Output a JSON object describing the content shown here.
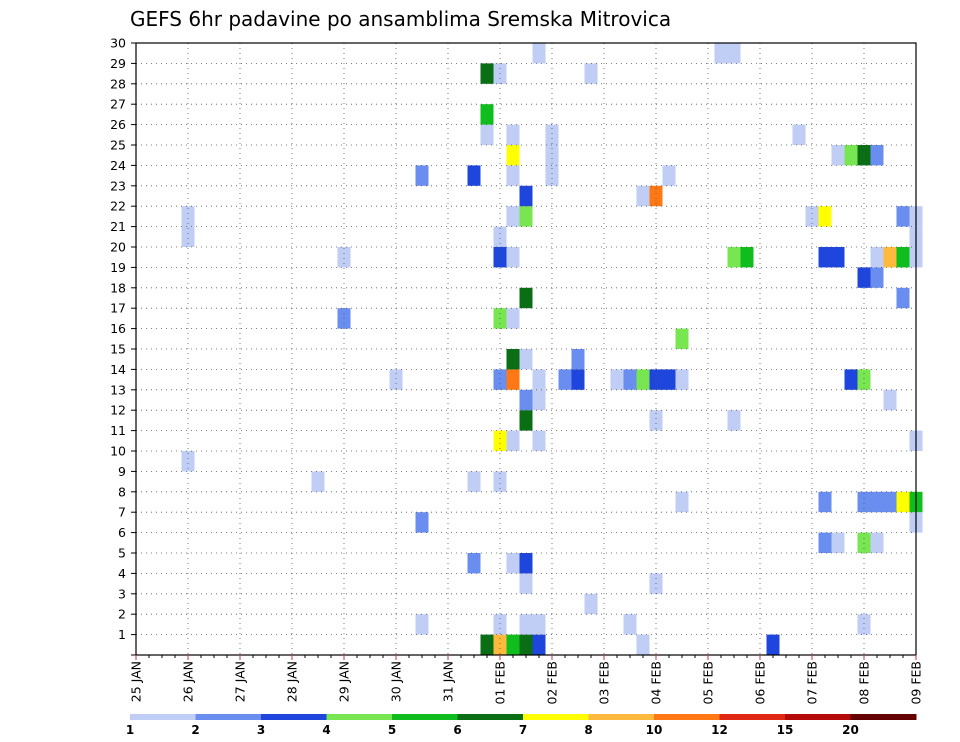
{
  "chart_data": {
    "type": "heatmap",
    "title": "GEFS 6hr padavine po ansamblima Sremska Mitrovica",
    "x_ticks": [
      "25 JAN",
      "26 JAN",
      "27 JAN",
      "28 JAN",
      "29 JAN",
      "30 JAN",
      "31 JAN",
      "01 FEB",
      "02 FEB",
      "03 FEB",
      "04 FEB",
      "05 FEB",
      "06 FEB",
      "07 FEB",
      "08 FEB",
      "09 FEB"
    ],
    "x_range": [
      "25 JAN 00z",
      "09 FEB 00z"
    ],
    "time_step_hours": 6,
    "y_ticks": [
      "1",
      "2",
      "3",
      "4",
      "5",
      "6",
      "7",
      "8",
      "9",
      "10",
      "11",
      "12",
      "13",
      "14",
      "15",
      "16",
      "17",
      "18",
      "19",
      "20",
      "21",
      "22",
      "23",
      "24",
      "25",
      "26",
      "27",
      "28",
      "29",
      "30"
    ],
    "y_range": [
      0,
      30
    ],
    "grid": "dotted",
    "colorbar": {
      "labels": [
        "1",
        "2",
        "3",
        "4",
        "5",
        "6",
        "7",
        "8",
        "10",
        "12",
        "15",
        "20"
      ],
      "colors": [
        "#c0cdf5",
        "#6a8ef0",
        "#1e46dc",
        "#78e650",
        "#0fbe1e",
        "#0a6e14",
        "#ffff00",
        "#ffb93c",
        "#ff7814",
        "#e12814",
        "#b40a0a",
        "#640000"
      ]
    },
    "points": [
      {
        "member": 0,
        "time": "31 JAN 18z",
        "class": 5
      },
      {
        "member": 0,
        "time": "01 FEB 00z",
        "class": 7
      },
      {
        "member": 0,
        "time": "01 FEB 06z",
        "class": 4
      },
      {
        "member": 0,
        "time": "01 FEB 12z",
        "class": 5
      },
      {
        "member": 0,
        "time": "01 FEB 18z",
        "class": 2
      },
      {
        "member": 0,
        "time": "03 FEB 18z",
        "class": 0
      },
      {
        "member": 0,
        "time": "06 FEB 06z",
        "class": 2
      },
      {
        "member": 1,
        "time": "30 JAN 12z",
        "class": 0
      },
      {
        "member": 1,
        "time": "01 FEB 00z",
        "class": 0
      },
      {
        "member": 1,
        "time": "01 FEB 12z",
        "class": 0
      },
      {
        "member": 1,
        "time": "01 FEB 18z",
        "class": 0
      },
      {
        "member": 1,
        "time": "03 FEB 12z",
        "class": 0
      },
      {
        "member": 1,
        "time": "08 FEB 00z",
        "class": 0
      },
      {
        "member": 2,
        "time": "02 FEB 18z",
        "class": 0
      },
      {
        "member": 3,
        "time": "01 FEB 12z",
        "class": 0
      },
      {
        "member": 3,
        "time": "04 FEB 00z",
        "class": 0
      },
      {
        "member": 4,
        "time": "31 JAN 12z",
        "class": 1
      },
      {
        "member": 4,
        "time": "01 FEB 06z",
        "class": 0
      },
      {
        "member": 4,
        "time": "01 FEB 12z",
        "class": 2
      },
      {
        "member": 5,
        "time": "07 FEB 06z",
        "class": 1
      },
      {
        "member": 5,
        "time": "07 FEB 12z",
        "class": 0
      },
      {
        "member": 5,
        "time": "08 FEB 00z",
        "class": 3
      },
      {
        "member": 5,
        "time": "08 FEB 06z",
        "class": 0
      },
      {
        "member": 6,
        "time": "30 JAN 12z",
        "class": 1
      },
      {
        "member": 6,
        "time": "09 FEB 00z",
        "class": 0
      },
      {
        "member": 7,
        "time": "04 FEB 12z",
        "class": 0
      },
      {
        "member": 7,
        "time": "07 FEB 06z",
        "class": 1
      },
      {
        "member": 7,
        "time": "08 FEB 00z",
        "class": 1
      },
      {
        "member": 7,
        "time": "08 FEB 06z",
        "class": 1
      },
      {
        "member": 7,
        "time": "08 FEB 12z",
        "class": 1
      },
      {
        "member": 7,
        "time": "08 FEB 18z",
        "class": 6
      },
      {
        "member": 7,
        "time": "09 FEB 00z",
        "class": 4
      },
      {
        "member": 8,
        "time": "28 JAN 12z",
        "class": 0
      },
      {
        "member": 8,
        "time": "31 JAN 12z",
        "class": 0
      },
      {
        "member": 8,
        "time": "01 FEB 00z",
        "class": 0
      },
      {
        "member": 9,
        "time": "26 JAN 00z",
        "class": 0
      },
      {
        "member": 10,
        "time": "01 FEB 00z",
        "class": 6
      },
      {
        "member": 10,
        "time": "01 FEB 06z",
        "class": 0
      },
      {
        "member": 10,
        "time": "01 FEB 18z",
        "class": 0
      },
      {
        "member": 10,
        "time": "09 FEB 00z",
        "class": 0
      },
      {
        "member": 11,
        "time": "01 FEB 12z",
        "class": 5
      },
      {
        "member": 11,
        "time": "04 FEB 00z",
        "class": 0
      },
      {
        "member": 11,
        "time": "05 FEB 12z",
        "class": 0
      },
      {
        "member": 12,
        "time": "01 FEB 12z",
        "class": 1
      },
      {
        "member": 12,
        "time": "01 FEB 18z",
        "class": 0
      },
      {
        "member": 12,
        "time": "08 FEB 12z",
        "class": 0
      },
      {
        "member": 13,
        "time": "30 JAN 00z",
        "class": 0
      },
      {
        "member": 13,
        "time": "01 FEB 00z",
        "class": 1
      },
      {
        "member": 13,
        "time": "01 FEB 06z",
        "class": 8
      },
      {
        "member": 13,
        "time": "01 FEB 18z",
        "class": 0
      },
      {
        "member": 13,
        "time": "02 FEB 06z",
        "class": 1
      },
      {
        "member": 13,
        "time": "02 FEB 12z",
        "class": 2
      },
      {
        "member": 13,
        "time": "03 FEB 06z",
        "class": 0
      },
      {
        "member": 13,
        "time": "03 FEB 12z",
        "class": 1
      },
      {
        "member": 13,
        "time": "03 FEB 18z",
        "class": 3
      },
      {
        "member": 13,
        "time": "04 FEB 00z",
        "class": 2
      },
      {
        "member": 13,
        "time": "04 FEB 06z",
        "class": 2
      },
      {
        "member": 13,
        "time": "04 FEB 12z",
        "class": 0
      },
      {
        "member": 13,
        "time": "07 FEB 18z",
        "class": 2
      },
      {
        "member": 13,
        "time": "08 FEB 00z",
        "class": 3
      },
      {
        "member": 14,
        "time": "01 FEB 06z",
        "class": 5
      },
      {
        "member": 14,
        "time": "01 FEB 12z",
        "class": 0
      },
      {
        "member": 14,
        "time": "02 FEB 12z",
        "class": 1
      },
      {
        "member": 15,
        "time": "04 FEB 12z",
        "class": 3
      },
      {
        "member": 16,
        "time": "29 JAN 00z",
        "class": 1
      },
      {
        "member": 16,
        "time": "01 FEB 00z",
        "class": 3
      },
      {
        "member": 16,
        "time": "01 FEB 06z",
        "class": 0
      },
      {
        "member": 17,
        "time": "01 FEB 12z",
        "class": 5
      },
      {
        "member": 17,
        "time": "08 FEB 18z",
        "class": 1
      },
      {
        "member": 18,
        "time": "08 FEB 00z",
        "class": 2
      },
      {
        "member": 18,
        "time": "08 FEB 06z",
        "class": 1
      },
      {
        "member": 19,
        "time": "29 JAN 00z",
        "class": 0
      },
      {
        "member": 19,
        "time": "01 FEB 00z",
        "class": 2
      },
      {
        "member": 19,
        "time": "01 FEB 06z",
        "class": 0
      },
      {
        "member": 19,
        "time": "05 FEB 12z",
        "class": 3
      },
      {
        "member": 19,
        "time": "05 FEB 18z",
        "class": 4
      },
      {
        "member": 19,
        "time": "07 FEB 06z",
        "class": 2
      },
      {
        "member": 19,
        "time": "07 FEB 12z",
        "class": 2
      },
      {
        "member": 19,
        "time": "08 FEB 06z",
        "class": 0
      },
      {
        "member": 19,
        "time": "08 FEB 12z",
        "class": 7
      },
      {
        "member": 19,
        "time": "08 FEB 18z",
        "class": 4
      },
      {
        "member": 19,
        "time": "09 FEB 00z",
        "class": 0
      },
      {
        "member": 20,
        "time": "26 JAN 00z",
        "class": 0
      },
      {
        "member": 20,
        "time": "01 FEB 00z",
        "class": 0
      },
      {
        "member": 20,
        "time": "09 FEB 00z",
        "class": 0
      },
      {
        "member": 21,
        "time": "26 JAN 00z",
        "class": 0
      },
      {
        "member": 21,
        "time": "01 FEB 06z",
        "class": 0
      },
      {
        "member": 21,
        "time": "01 FEB 12z",
        "class": 3
      },
      {
        "member": 21,
        "time": "07 FEB 00z",
        "class": 0
      },
      {
        "member": 21,
        "time": "07 FEB 06z",
        "class": 6
      },
      {
        "member": 21,
        "time": "08 FEB 18z",
        "class": 1
      },
      {
        "member": 21,
        "time": "09 FEB 00z",
        "class": 0
      },
      {
        "member": 22,
        "time": "01 FEB 12z",
        "class": 2
      },
      {
        "member": 22,
        "time": "03 FEB 18z",
        "class": 0
      },
      {
        "member": 22,
        "time": "04 FEB 00z",
        "class": 8
      },
      {
        "member": 23,
        "time": "30 JAN 12z",
        "class": 1
      },
      {
        "member": 23,
        "time": "31 JAN 12z",
        "class": 2
      },
      {
        "member": 23,
        "time": "01 FEB 06z",
        "class": 0
      },
      {
        "member": 23,
        "time": "02 FEB 00z",
        "class": 0
      },
      {
        "member": 23,
        "time": "04 FEB 06z",
        "class": 0
      },
      {
        "member": 24,
        "time": "01 FEB 06z",
        "class": 6
      },
      {
        "member": 24,
        "time": "02 FEB 00z",
        "class": 0
      },
      {
        "member": 24,
        "time": "07 FEB 12z",
        "class": 0
      },
      {
        "member": 24,
        "time": "07 FEB 18z",
        "class": 3
      },
      {
        "member": 24,
        "time": "08 FEB 00z",
        "class": 5
      },
      {
        "member": 24,
        "time": "08 FEB 06z",
        "class": 1
      },
      {
        "member": 25,
        "time": "31 JAN 18z",
        "class": 0
      },
      {
        "member": 25,
        "time": "01 FEB 06z",
        "class": 0
      },
      {
        "member": 25,
        "time": "02 FEB 00z",
        "class": 0
      },
      {
        "member": 25,
        "time": "06 FEB 18z",
        "class": 0
      },
      {
        "member": 26,
        "time": "31 JAN 18z",
        "class": 4
      },
      {
        "member": 28,
        "time": "31 JAN 18z",
        "class": 5
      },
      {
        "member": 28,
        "time": "01 FEB 00z",
        "class": 0
      },
      {
        "member": 28,
        "time": "02 FEB 18z",
        "class": 0
      },
      {
        "member": 29,
        "time": "01 FEB 18z",
        "class": 0
      },
      {
        "member": 29,
        "time": "05 FEB 06z",
        "class": 0
      },
      {
        "member": 29,
        "time": "05 FEB 12z",
        "class": 0
      }
    ]
  }
}
